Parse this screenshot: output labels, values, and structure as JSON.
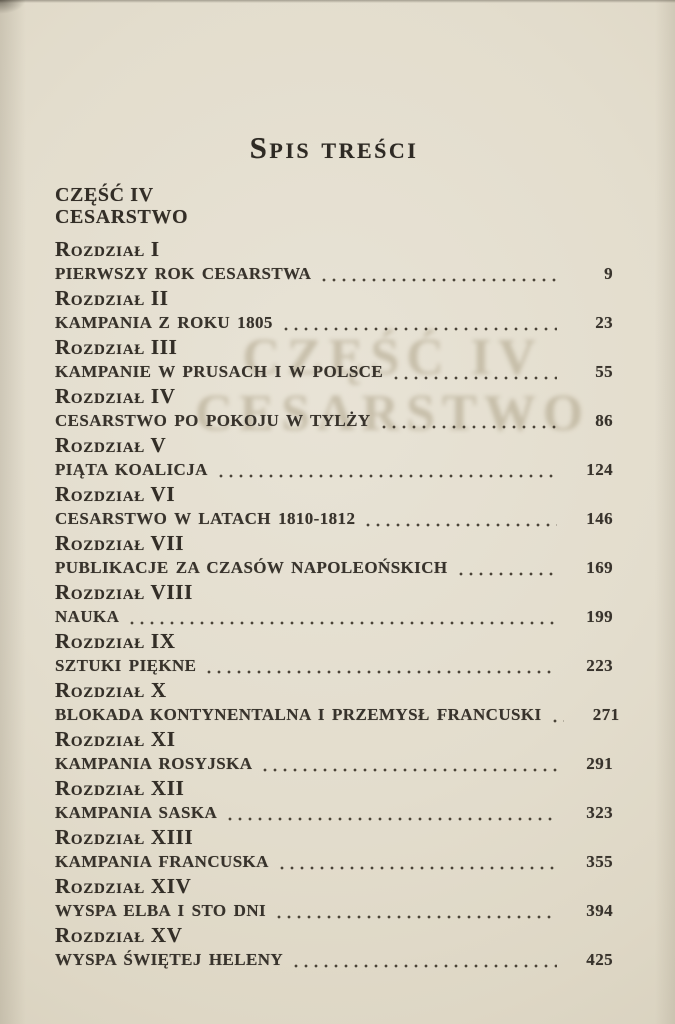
{
  "book_page": {
    "title": "Spis treści",
    "part": {
      "label": "CZĘŚĆ IV",
      "name": "CESARSTWO"
    },
    "show_through_watermark": {
      "line1": "CZĘŚĆ IV",
      "line2": "CESARSTWO"
    },
    "toc_entries": [
      {
        "chapter": "Rozdział I",
        "title": "PIERWSZY ROK CESARSTWA",
        "page": "9"
      },
      {
        "chapter": "Rozdział II",
        "title": "KAMPANIA Z ROKU 1805",
        "page": "23"
      },
      {
        "chapter": "Rozdział III",
        "title": "KAMPANIE W PRUSACH I W POLSCE",
        "page": "55"
      },
      {
        "chapter": "Rozdział IV",
        "title": "CESARSTWO PO POKOJU W TYLŻY",
        "page": "86"
      },
      {
        "chapter": "Rozdział V",
        "title": "PIĄTA KOALICJA",
        "page": "124"
      },
      {
        "chapter": "Rozdział VI",
        "title": "CESARSTWO W LATACH 1810-1812",
        "page": "146"
      },
      {
        "chapter": "Rozdział VII",
        "title": "PUBLIKACJE ZA CZASÓW NAPOLEOŃSKICH",
        "page": "169"
      },
      {
        "chapter": "Rozdział VIII",
        "title": "NAUKA",
        "page": "199"
      },
      {
        "chapter": "Rozdział IX",
        "title": "SZTUKI PIĘKNE",
        "page": "223"
      },
      {
        "chapter": "Rozdział X",
        "title": "BLOKADA KONTYNENTALNA I PRZEMYSŁ FRANCUSKI",
        "page": "271"
      },
      {
        "chapter": "Rozdział XI",
        "title": "KAMPANIA ROSYJSKA",
        "page": "291"
      },
      {
        "chapter": "Rozdział XII",
        "title": "KAMPANIA SASKA",
        "page": "323"
      },
      {
        "chapter": "Rozdział XIII",
        "title": "KAMPANIA FRANCUSKA",
        "page": "355"
      },
      {
        "chapter": "Rozdział XIV",
        "title": "WYSPA ELBA I STO DNI",
        "page": "394"
      },
      {
        "chapter": "Rozdział XV",
        "title": "WYSPA ŚWIĘTEJ HELENY",
        "page": "425"
      }
    ],
    "colors": {
      "paper": "#e3ddcd",
      "ink": "#35302a",
      "watermark_ink": "#968a6a"
    }
  }
}
